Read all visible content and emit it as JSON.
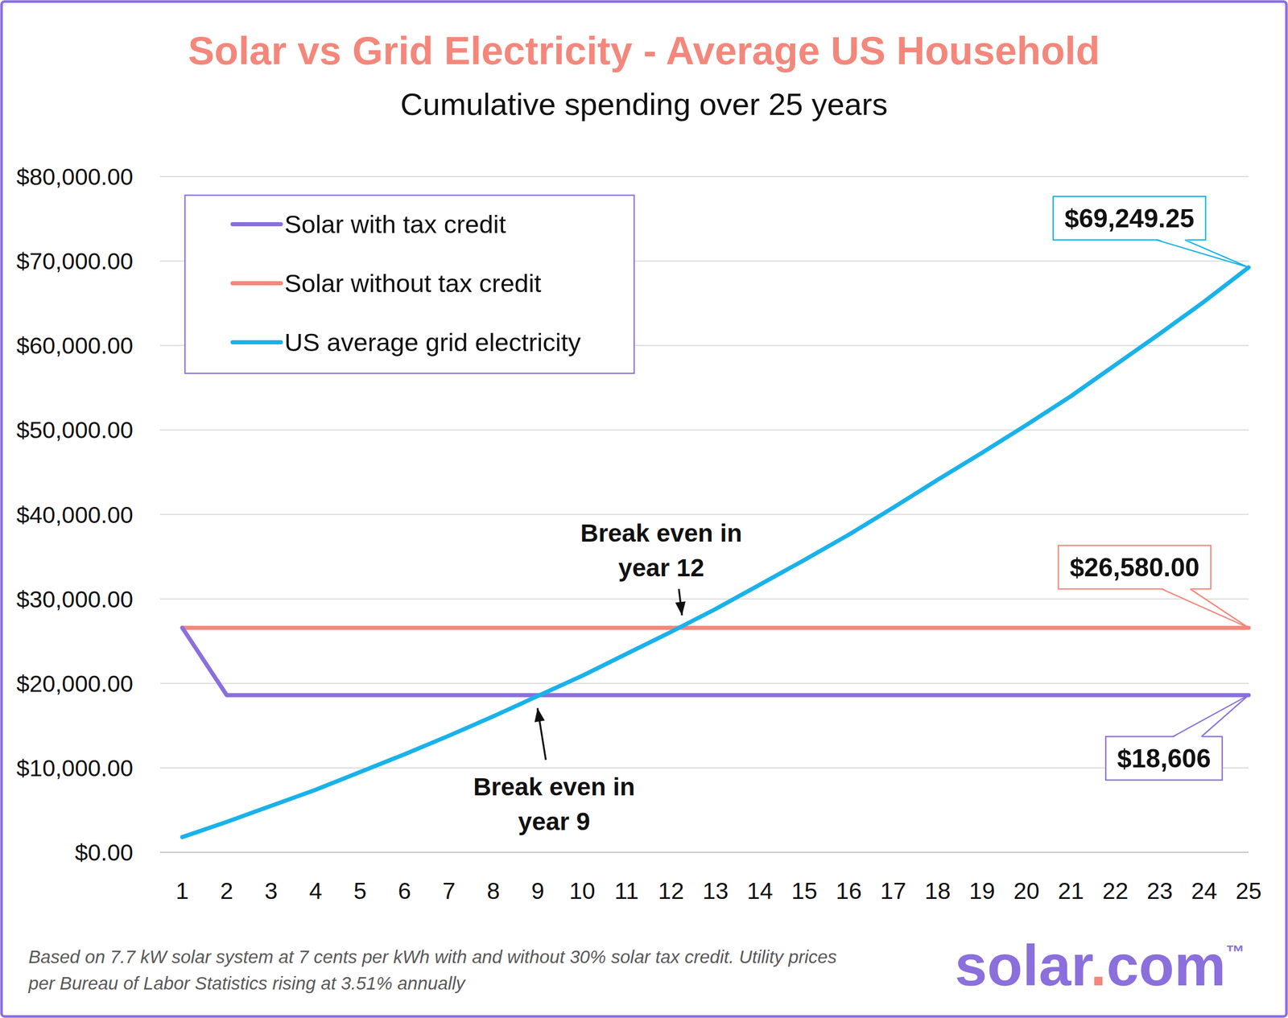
{
  "chart_data": {
    "type": "line",
    "title": "Solar vs Grid Electricity - Average US Household",
    "subtitle": "Cumulative spending over 25 years",
    "x": [
      1,
      2,
      3,
      4,
      5,
      6,
      7,
      8,
      9,
      10,
      11,
      12,
      13,
      14,
      15,
      16,
      17,
      18,
      19,
      20,
      21,
      22,
      23,
      24,
      25
    ],
    "xlim": [
      0.5,
      25
    ],
    "xticks": [
      1,
      2,
      3,
      4,
      5,
      6,
      7,
      8,
      9,
      10,
      11,
      12,
      13,
      14,
      15,
      16,
      17,
      18,
      19,
      20,
      21,
      22,
      23,
      24,
      25
    ],
    "ylim": [
      0,
      80000
    ],
    "yticks": [
      {
        "value": 0,
        "label": "$0.00"
      },
      {
        "value": 10000,
        "label": "$10,000.00"
      },
      {
        "value": 20000,
        "label": "$20,000.00"
      },
      {
        "value": 30000,
        "label": "$30,000.00"
      },
      {
        "value": 40000,
        "label": "$40,000.00"
      },
      {
        "value": 50000,
        "label": "$50,000.00"
      },
      {
        "value": 60000,
        "label": "$60,000.00"
      },
      {
        "value": 70000,
        "label": "$70,000.00"
      },
      {
        "value": 80000,
        "label": "$80,000.00"
      }
    ],
    "grid": true,
    "legend": "top-left",
    "series": [
      {
        "name": "Solar with tax credit",
        "color": "#8b6fdc",
        "values": [
          26580,
          18606,
          18606,
          18606,
          18606,
          18606,
          18606,
          18606,
          18606,
          18606,
          18606,
          18606,
          18606,
          18606,
          18606,
          18606,
          18606,
          18606,
          18606,
          18606,
          18606,
          18606,
          18606,
          18606,
          18606
        ],
        "value_labels": [
          null,
          null,
          null,
          null,
          null,
          null,
          null,
          null,
          null,
          null,
          null,
          null,
          null,
          null,
          null,
          null,
          null,
          null,
          null,
          null,
          null,
          null,
          null,
          null,
          "$18,606"
        ]
      },
      {
        "name": "Solar without tax credit",
        "color": "#f4877b",
        "values": [
          26580,
          26580,
          26580,
          26580,
          26580,
          26580,
          26580,
          26580,
          26580,
          26580,
          26580,
          26580,
          26580,
          26580,
          26580,
          26580,
          26580,
          26580,
          26580,
          26580,
          26580,
          26580,
          26580,
          26580,
          26580
        ],
        "value_labels": [
          null,
          null,
          null,
          null,
          null,
          null,
          null,
          null,
          null,
          null,
          null,
          null,
          null,
          null,
          null,
          null,
          null,
          null,
          null,
          null,
          null,
          null,
          null,
          null,
          "$26,580.00"
        ]
      },
      {
        "name": "US average grid electricity",
        "color": "#19b2ea",
        "values": [
          1800,
          3600,
          5500,
          7400,
          9500,
          11600,
          13800,
          16100,
          18500,
          20900,
          23500,
          26100,
          28800,
          31700,
          34600,
          37600,
          40800,
          44100,
          47300,
          50600,
          54000,
          57700,
          61400,
          65200,
          69249.25
        ],
        "value_labels": [
          null,
          null,
          null,
          null,
          null,
          null,
          null,
          null,
          null,
          null,
          null,
          null,
          null,
          null,
          null,
          null,
          null,
          null,
          null,
          null,
          null,
          null,
          null,
          null,
          "$69,249.25"
        ]
      }
    ],
    "annotations": [
      {
        "text": [
          "Break even in",
          "year 12"
        ],
        "x": 12.2,
        "y": 26580
      },
      {
        "text": [
          "Break even in",
          "year 9"
        ],
        "x": 9.1,
        "y": 18606
      }
    ],
    "footnote": [
      "Based on 7.7 kW solar system at 7 cents per kWh with and without 30% solar tax credit. Utility prices",
      "per Bureau of Labor Statistics rising at 3.51% annually"
    ],
    "logo": "solar.com™"
  }
}
